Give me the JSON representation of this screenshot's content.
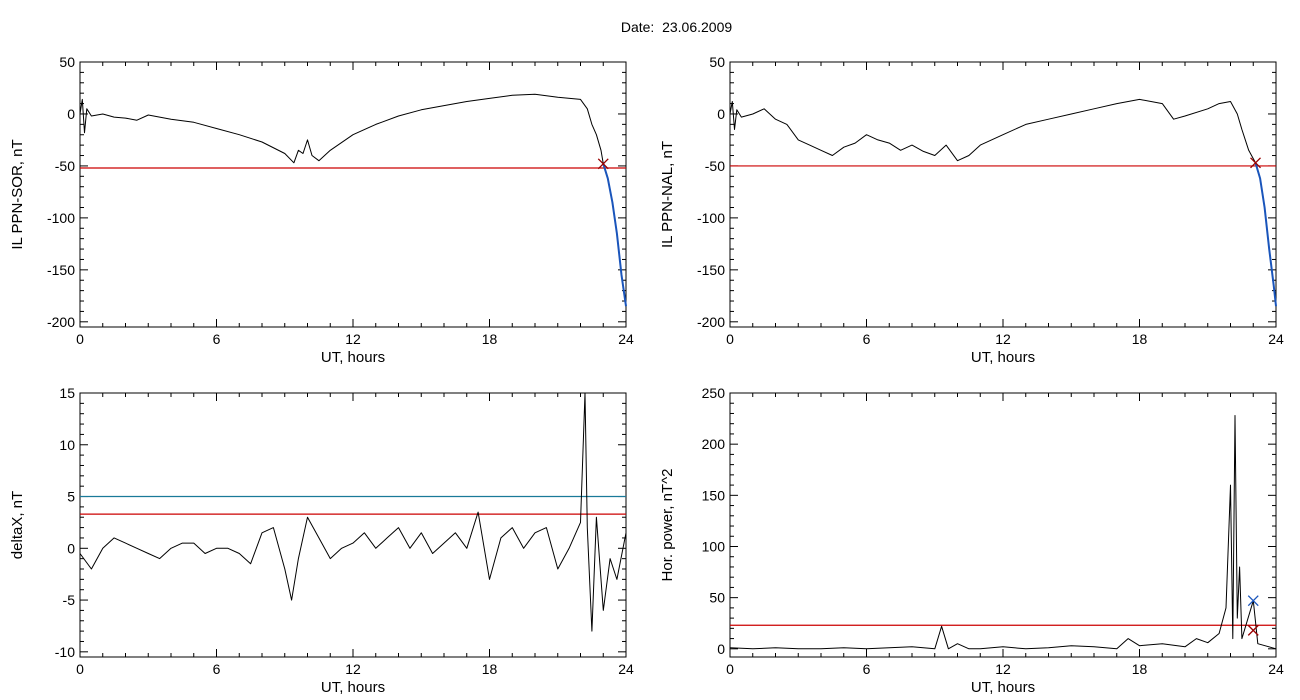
{
  "figure": {
    "title": "Date:  23.06.2009"
  },
  "chart_data": [
    {
      "type": "line",
      "panel": "top-left",
      "xlabel": "UT, hours",
      "ylabel": "IL PPN-SOR, nT",
      "xlim": [
        0,
        24
      ],
      "ylim": [
        -205,
        50
      ],
      "xticks": [
        0,
        6,
        12,
        18,
        24
      ],
      "yticks": [
        50,
        0,
        -50,
        -100,
        -150,
        -200
      ],
      "hlines": [
        {
          "value": -52,
          "color": "#cc0000"
        }
      ],
      "markers": [
        {
          "x": 23.0,
          "y": -48,
          "symbol": "x",
          "color": "#990000"
        }
      ],
      "series": [
        {
          "color": "#000000",
          "points": [
            [
              0,
              0
            ],
            [
              0.1,
              14
            ],
            [
              0.2,
              -18
            ],
            [
              0.3,
              5
            ],
            [
              0.5,
              -2
            ],
            [
              1,
              0
            ],
            [
              1.5,
              -3
            ],
            [
              2,
              -4
            ],
            [
              2.5,
              -6
            ],
            [
              3,
              -1
            ],
            [
              4,
              -5
            ],
            [
              5,
              -8
            ],
            [
              6,
              -14
            ],
            [
              7,
              -20
            ],
            [
              8,
              -27
            ],
            [
              9,
              -38
            ],
            [
              9.4,
              -47
            ],
            [
              9.6,
              -35
            ],
            [
              9.8,
              -38
            ],
            [
              10,
              -25
            ],
            [
              10.2,
              -40
            ],
            [
              10.5,
              -45
            ],
            [
              11,
              -35
            ],
            [
              12,
              -20
            ],
            [
              13,
              -10
            ],
            [
              14,
              -2
            ],
            [
              15,
              4
            ],
            [
              16,
              8
            ],
            [
              17,
              12
            ],
            [
              18,
              15
            ],
            [
              19,
              18
            ],
            [
              20,
              19
            ],
            [
              21,
              16
            ],
            [
              22,
              14
            ],
            [
              22.3,
              5
            ],
            [
              22.5,
              -10
            ],
            [
              22.7,
              -20
            ],
            [
              22.9,
              -35
            ],
            [
              23.0,
              -48
            ]
          ]
        },
        {
          "color": "#1a55bb",
          "points": [
            [
              23.0,
              -48
            ],
            [
              23.2,
              -62
            ],
            [
              23.4,
              -85
            ],
            [
              23.6,
              -115
            ],
            [
              23.8,
              -155
            ],
            [
              24.0,
              -185
            ]
          ]
        }
      ]
    },
    {
      "type": "line",
      "panel": "top-right",
      "xlabel": "UT, hours",
      "ylabel": "IL PPN-NAL, nT",
      "xlim": [
        0,
        24
      ],
      "ylim": [
        -205,
        50
      ],
      "xticks": [
        0,
        6,
        12,
        18,
        24
      ],
      "yticks": [
        50,
        0,
        -50,
        -100,
        -150,
        -200
      ],
      "hlines": [
        {
          "value": -50,
          "color": "#cc0000"
        }
      ],
      "markers": [
        {
          "x": 23.1,
          "y": -47,
          "symbol": "x",
          "color": "#990000"
        }
      ],
      "series": [
        {
          "color": "#000000",
          "points": [
            [
              0,
              0
            ],
            [
              0.1,
              12
            ],
            [
              0.2,
              -15
            ],
            [
              0.3,
              4
            ],
            [
              0.5,
              -3
            ],
            [
              1,
              0
            ],
            [
              1.5,
              5
            ],
            [
              2,
              -5
            ],
            [
              2.5,
              -10
            ],
            [
              3,
              -25
            ],
            [
              3.5,
              -30
            ],
            [
              4,
              -35
            ],
            [
              4.5,
              -40
            ],
            [
              5,
              -32
            ],
            [
              5.5,
              -28
            ],
            [
              6,
              -20
            ],
            [
              6.5,
              -25
            ],
            [
              7,
              -28
            ],
            [
              7.5,
              -35
            ],
            [
              8,
              -30
            ],
            [
              8.5,
              -36
            ],
            [
              9,
              -40
            ],
            [
              9.5,
              -30
            ],
            [
              10,
              -45
            ],
            [
              10.5,
              -40
            ],
            [
              11,
              -30
            ],
            [
              12,
              -20
            ],
            [
              13,
              -10
            ],
            [
              14,
              -5
            ],
            [
              15,
              0
            ],
            [
              16,
              5
            ],
            [
              17,
              10
            ],
            [
              18,
              14
            ],
            [
              19,
              10
            ],
            [
              19.5,
              -5
            ],
            [
              20,
              -2
            ],
            [
              21,
              5
            ],
            [
              21.5,
              10
            ],
            [
              22,
              12
            ],
            [
              22.3,
              0
            ],
            [
              22.5,
              -15
            ],
            [
              22.8,
              -35
            ],
            [
              23.1,
              -47
            ]
          ]
        },
        {
          "color": "#1a55bb",
          "points": [
            [
              23.1,
              -47
            ],
            [
              23.3,
              -62
            ],
            [
              23.5,
              -90
            ],
            [
              23.7,
              -130
            ],
            [
              23.9,
              -165
            ],
            [
              24.0,
              -185
            ]
          ]
        }
      ]
    },
    {
      "type": "line",
      "panel": "bottom-left",
      "xlabel": "UT, hours",
      "ylabel": "deltaX, nT",
      "xlim": [
        0,
        24
      ],
      "ylim": [
        -10.5,
        15
      ],
      "xticks": [
        0,
        6,
        12,
        18,
        24
      ],
      "yticks": [
        15,
        10,
        5,
        0,
        -5,
        -10
      ],
      "hlines": [
        {
          "value": 5.0,
          "color": "#1a7a99"
        },
        {
          "value": 3.3,
          "color": "#cc0000"
        }
      ],
      "markers": [],
      "series": [
        {
          "color": "#000000",
          "points": [
            [
              0,
              -0.5
            ],
            [
              0.5,
              -2
            ],
            [
              1,
              0
            ],
            [
              1.5,
              1
            ],
            [
              2,
              0.5
            ],
            [
              2.5,
              0
            ],
            [
              3,
              -0.5
            ],
            [
              3.5,
              -1
            ],
            [
              4,
              0
            ],
            [
              4.5,
              0.5
            ],
            [
              5,
              0.5
            ],
            [
              5.5,
              -0.5
            ],
            [
              6,
              0
            ],
            [
              6.5,
              0
            ],
            [
              7,
              -0.5
            ],
            [
              7.5,
              -1.5
            ],
            [
              8,
              1.5
            ],
            [
              8.5,
              2
            ],
            [
              9,
              -2
            ],
            [
              9.3,
              -5
            ],
            [
              9.6,
              -1
            ],
            [
              10,
              3
            ],
            [
              10.5,
              1
            ],
            [
              11,
              -1
            ],
            [
              11.5,
              0
            ],
            [
              12,
              0.5
            ],
            [
              12.5,
              1.5
            ],
            [
              13,
              0
            ],
            [
              13.5,
              1
            ],
            [
              14,
              2
            ],
            [
              14.5,
              0
            ],
            [
              15,
              1.5
            ],
            [
              15.5,
              -0.5
            ],
            [
              16,
              0.5
            ],
            [
              16.5,
              1.5
            ],
            [
              17,
              0
            ],
            [
              17.5,
              3.5
            ],
            [
              18,
              -3
            ],
            [
              18.5,
              1
            ],
            [
              19,
              2
            ],
            [
              19.5,
              0
            ],
            [
              20,
              1.5
            ],
            [
              20.5,
              2
            ],
            [
              21,
              -2
            ],
            [
              21.5,
              0
            ],
            [
              22,
              2.5
            ],
            [
              22.2,
              15
            ],
            [
              22.3,
              2
            ],
            [
              22.5,
              -8
            ],
            [
              22.7,
              3
            ],
            [
              23,
              -6
            ],
            [
              23.3,
              -1
            ],
            [
              23.6,
              -3
            ],
            [
              24,
              1.5
            ]
          ]
        }
      ]
    },
    {
      "type": "line",
      "panel": "bottom-right",
      "xlabel": "UT, hours",
      "ylabel": "Hor. power, nT^2",
      "xlim": [
        0,
        24
      ],
      "ylim": [
        -8,
        250
      ],
      "xticks": [
        0,
        6,
        12,
        18,
        24
      ],
      "yticks": [
        250,
        200,
        150,
        100,
        50,
        0
      ],
      "hlines": [
        {
          "value": 23,
          "color": "#cc0000"
        }
      ],
      "markers": [
        {
          "x": 23.0,
          "y": 47,
          "symbol": "x",
          "color": "#1a55bb"
        },
        {
          "x": 23.0,
          "y": 18,
          "symbol": "x",
          "color": "#990000"
        }
      ],
      "series": [
        {
          "color": "#000000",
          "points": [
            [
              0,
              1
            ],
            [
              1,
              0
            ],
            [
              2,
              1
            ],
            [
              3,
              0
            ],
            [
              4,
              0
            ],
            [
              5,
              1
            ],
            [
              6,
              0
            ],
            [
              7,
              1
            ],
            [
              8,
              2
            ],
            [
              9,
              0
            ],
            [
              9.3,
              22
            ],
            [
              9.6,
              0
            ],
            [
              10,
              5
            ],
            [
              10.5,
              0
            ],
            [
              11,
              0
            ],
            [
              12,
              2
            ],
            [
              13,
              0
            ],
            [
              14,
              1
            ],
            [
              15,
              3
            ],
            [
              16,
              2
            ],
            [
              17,
              0
            ],
            [
              17.5,
              10
            ],
            [
              18,
              3
            ],
            [
              19,
              5
            ],
            [
              20,
              2
            ],
            [
              20.5,
              10
            ],
            [
              21,
              6
            ],
            [
              21.5,
              15
            ],
            [
              21.8,
              40
            ],
            [
              22.0,
              160
            ],
            [
              22.1,
              10
            ],
            [
              22.2,
              228
            ],
            [
              22.3,
              30
            ],
            [
              22.4,
              80
            ],
            [
              22.5,
              10
            ],
            [
              23.0,
              47
            ],
            [
              23.2,
              5
            ],
            [
              24,
              0
            ]
          ]
        }
      ]
    }
  ]
}
